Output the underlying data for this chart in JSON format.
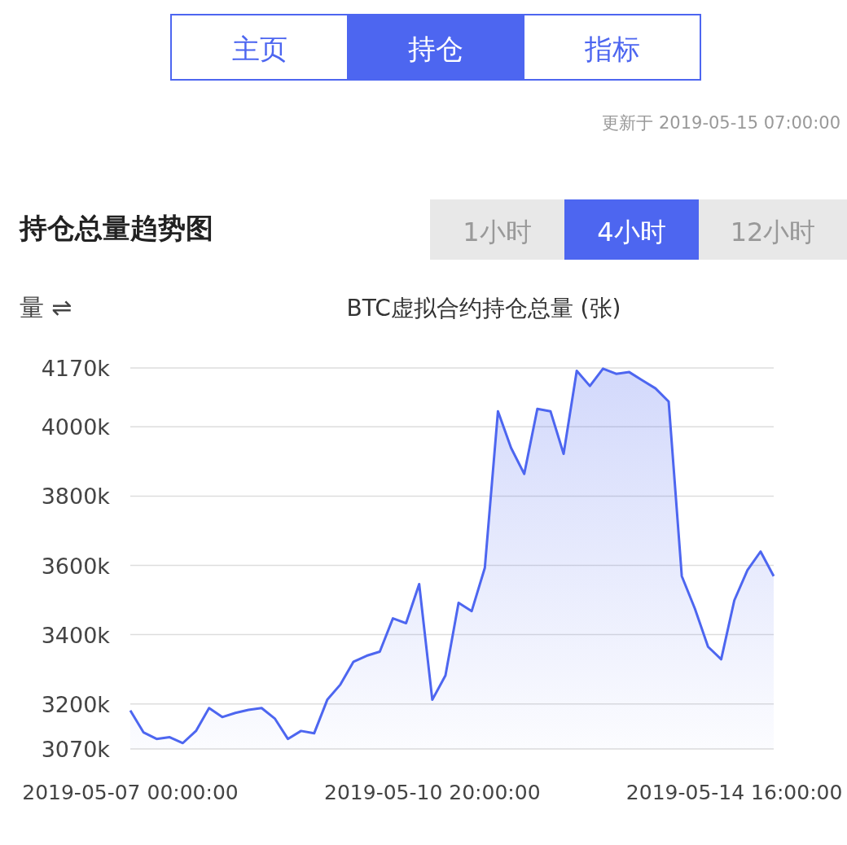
{
  "chart_data": {
    "type": "area",
    "title": "持仓总量趋势图",
    "subtitle": "BTC虚拟合约持仓总量 (张)",
    "annotations": [
      "主页",
      "持仓",
      "指标",
      "更新于 2019-05-15 07:00:00",
      "1小时",
      "4小时",
      "12小时",
      "量 ⇌"
    ],
    "x": [
      "2019-05-07T00:00",
      "2019-05-07T04:00",
      "2019-05-07T08:00",
      "2019-05-07T12:00",
      "2019-05-07T16:00",
      "2019-05-07T20:00",
      "2019-05-08T00:00",
      "2019-05-08T04:00",
      "2019-05-08T08:00",
      "2019-05-08T12:00",
      "2019-05-08T16:00",
      "2019-05-08T20:00",
      "2019-05-09T00:00",
      "2019-05-09T04:00",
      "2019-05-09T08:00",
      "2019-05-09T12:00",
      "2019-05-09T16:00",
      "2019-05-09T20:00",
      "2019-05-10T00:00",
      "2019-05-10T04:00",
      "2019-05-10T08:00",
      "2019-05-10T12:00",
      "2019-05-10T16:00",
      "2019-05-10T20:00",
      "2019-05-11T00:00",
      "2019-05-11T04:00",
      "2019-05-11T08:00",
      "2019-05-11T12:00",
      "2019-05-11T16:00",
      "2019-05-11T20:00",
      "2019-05-12T00:00",
      "2019-05-12T04:00",
      "2019-05-12T08:00",
      "2019-05-12T12:00",
      "2019-05-12T16:00",
      "2019-05-12T20:00",
      "2019-05-13T00:00",
      "2019-05-13T04:00",
      "2019-05-13T08:00",
      "2019-05-13T12:00",
      "2019-05-13T16:00",
      "2019-05-13T20:00",
      "2019-05-14T00:00",
      "2019-05-14T04:00",
      "2019-05-14T08:00",
      "2019-05-14T12:00",
      "2019-05-14T16:00",
      "2019-05-14T20:00",
      "2019-05-15T00:00",
      "2019-05-15T04:00"
    ],
    "series": [
      {
        "color": "#4d66f0",
        "values": [
          3181,
          3118,
          3099,
          3104,
          3087,
          3122,
          3188,
          3162,
          3174,
          3183,
          3188,
          3158,
          3099,
          3122,
          3115,
          3212,
          3256,
          3322,
          3339,
          3351,
          3447,
          3433,
          3546,
          3212,
          3282,
          3492,
          3468,
          3593,
          4045,
          3939,
          3864,
          4052,
          4045,
          3922,
          4162,
          4118,
          4168,
          4153,
          4158,
          4134,
          4111,
          4073,
          3569,
          3475,
          3365,
          3329,
          3499,
          3586,
          3640,
          3569
        ]
      }
    ],
    "xlim": [
      "2019-05-07T00:00",
      "2019-05-15T04:00"
    ],
    "xticks": [
      {
        "value": "2019-05-07T00:00",
        "label": "2019-05-07 00:00:00"
      },
      {
        "value": "2019-05-10T20:00",
        "label": "2019-05-10 20:00:00"
      },
      {
        "value": "2019-05-14T16:00",
        "label": "2019-05-14 16:00:00"
      }
    ],
    "ylim": [
      3070,
      4170
    ],
    "yticks": [
      {
        "value": 3070,
        "label": "3070k"
      },
      {
        "value": 3200,
        "label": "3200k"
      },
      {
        "value": 3400,
        "label": "3400k"
      },
      {
        "value": 3600,
        "label": "3600k"
      },
      {
        "value": 3800,
        "label": "3800k"
      },
      {
        "value": 4000,
        "label": "4000k"
      },
      {
        "value": 4170,
        "label": "4170k"
      }
    ],
    "grid": "y",
    "marker": "none",
    "line_style": "solid"
  }
}
